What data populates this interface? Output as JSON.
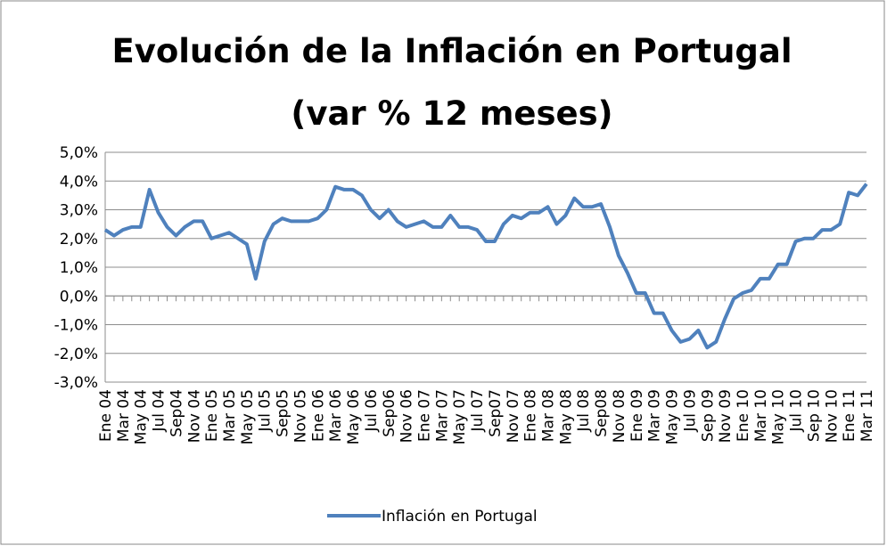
{
  "chart_data": {
    "type": "line",
    "title": [
      "Evolución de la Inflación en Portugal",
      "(var % 12 meses)"
    ],
    "categories": [
      "Ene 04",
      null,
      "Mar 04",
      null,
      "May 04",
      null,
      "Jul 04",
      null,
      "Sep04",
      null,
      "Nov 04",
      null,
      "Ene 05",
      null,
      "Mar 05",
      null,
      "May 05",
      null,
      "Jul 05",
      null,
      "Sep05",
      null,
      "Nov 05",
      null,
      "Ene 06",
      null,
      "Mar 06",
      null,
      "May 06",
      null,
      "Jul 06",
      null,
      "Sep06",
      null,
      "Nov 06",
      null,
      "Ene 07",
      null,
      "Mar 07",
      null,
      "May 07",
      null,
      "Jul 07",
      null,
      "Sep07",
      null,
      "Nov 07",
      null,
      "Ene 08",
      null,
      "Mar 08",
      null,
      "May 08",
      null,
      "Jul 08",
      null,
      "Sep08",
      null,
      "Nov 08",
      null,
      "Ene 09",
      null,
      "Mar 09",
      null,
      "May 09",
      null,
      "Jul 09",
      null,
      "Sep 09",
      null,
      "Nov 09",
      null,
      "Ene 10",
      null,
      "Mar 10",
      null,
      "May 10",
      null,
      "Jul 10",
      null,
      "Sep 10",
      null,
      "Nov 10",
      null,
      "Ene 11",
      null,
      "Mar 11"
    ],
    "series": [
      {
        "name": "Inflación en Portugal",
        "color": "#4f81bd",
        "values": [
          2.3,
          2.1,
          2.3,
          2.4,
          2.4,
          3.7,
          2.9,
          2.4,
          2.1,
          2.4,
          2.6,
          2.6,
          2.0,
          2.1,
          2.2,
          2.0,
          1.8,
          0.6,
          1.9,
          2.5,
          2.7,
          2.6,
          2.6,
          2.6,
          2.7,
          3.0,
          3.8,
          3.7,
          3.7,
          3.5,
          3.0,
          2.7,
          3.0,
          2.6,
          2.4,
          2.5,
          2.6,
          2.4,
          2.4,
          2.8,
          2.4,
          2.4,
          2.3,
          1.9,
          1.9,
          2.5,
          2.8,
          2.7,
          2.9,
          2.9,
          3.1,
          2.5,
          2.8,
          3.4,
          3.1,
          3.1,
          3.2,
          2.4,
          1.4,
          0.8,
          0.1,
          0.1,
          -0.6,
          -0.6,
          -1.2,
          -1.6,
          -1.5,
          -1.2,
          -1.8,
          -1.6,
          -0.8,
          -0.1,
          0.1,
          0.2,
          0.6,
          0.6,
          1.1,
          1.1,
          1.9,
          2.0,
          2.0,
          2.3,
          2.3,
          2.5,
          3.6,
          3.5,
          3.9
        ]
      }
    ],
    "ylim": [
      -3,
      5
    ],
    "yticks": [
      {
        "value": -3,
        "label": "-3,0%"
      },
      {
        "value": -2,
        "label": "-2,0%"
      },
      {
        "value": -1,
        "label": "-1,0%"
      },
      {
        "value": 0,
        "label": "0,0%"
      },
      {
        "value": 1,
        "label": "1,0%"
      },
      {
        "value": 2,
        "label": "2,0%"
      },
      {
        "value": 3,
        "label": "3,0%"
      },
      {
        "value": 4,
        "label": "4,0%"
      },
      {
        "value": 5,
        "label": "5,0%"
      }
    ],
    "grid": true,
    "legend": "bottom"
  }
}
